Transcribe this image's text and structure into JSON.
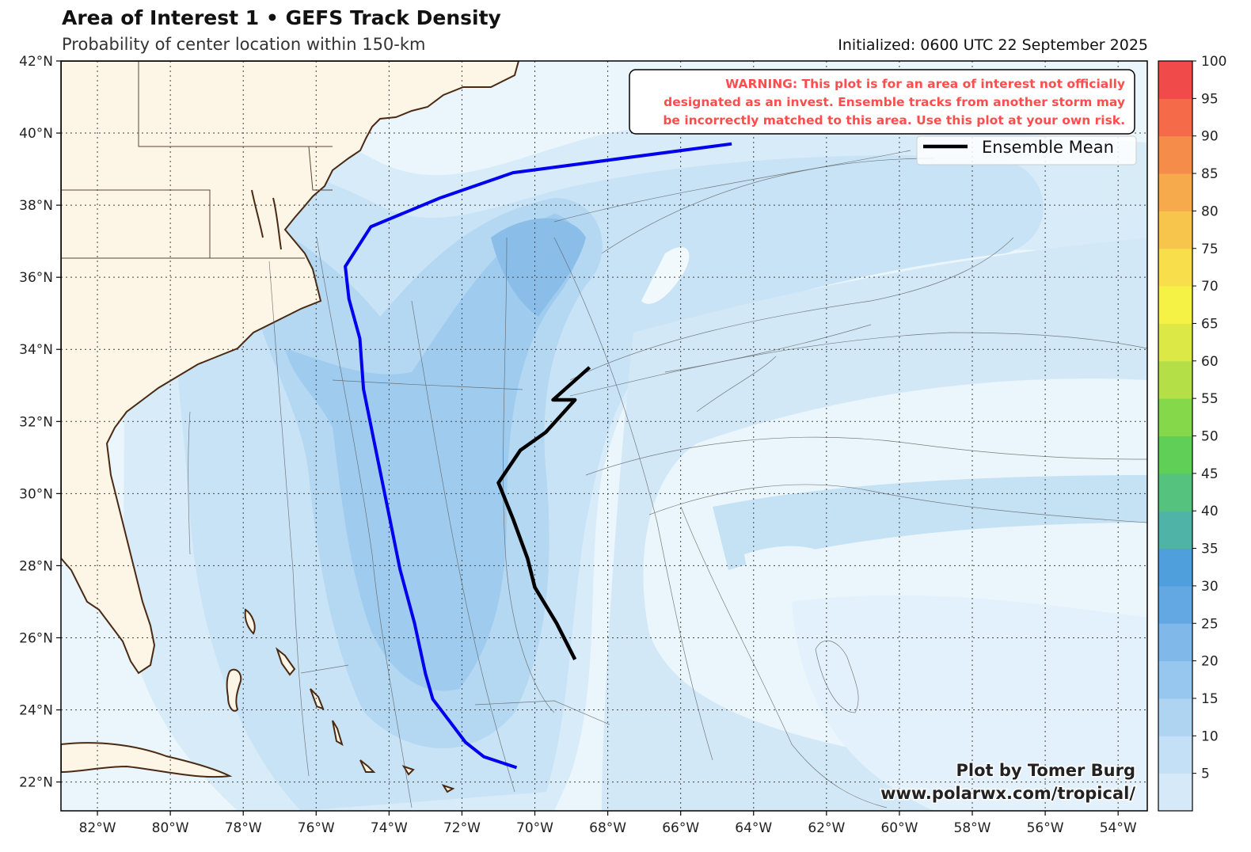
{
  "header": {
    "title": "Area of Interest 1 • GEFS Track Density",
    "subtitle": "Probability of center location within 150-km",
    "initialized": "Initialized: 0600 UTC 22 September 2025"
  },
  "map": {
    "lon_range": [
      -83,
      -53.2
    ],
    "lat_range": [
      21.2,
      42
    ],
    "lon_ticks": [
      "82°W",
      "80°W",
      "78°W",
      "76°W",
      "74°W",
      "72°W",
      "70°W",
      "68°W",
      "66°W",
      "64°W",
      "62°W",
      "60°W",
      "58°W",
      "56°W",
      "54°W"
    ],
    "lat_ticks": [
      "22°N",
      "24°N",
      "26°N",
      "28°N",
      "30°N",
      "32°N",
      "34°N",
      "36°N",
      "38°N",
      "40°N",
      "42°N"
    ],
    "ocean_color": "#eaf6fc",
    "land_color": "#fdf5e6"
  },
  "warning": {
    "lines": [
      "WARNING: This plot is for an area of interest not officially",
      "designated as an invest. Ensemble tracks from another storm may",
      "be incorrectly matched to this area. Use this plot at your own risk."
    ],
    "color": "#ff4d4d"
  },
  "legend": {
    "label": "Ensemble Mean"
  },
  "credit": {
    "line1": "Plot by Tomer Burg",
    "line2": "www.polarwx.com/tropical/"
  },
  "colorbar": {
    "labels": [
      "5",
      "10",
      "15",
      "20",
      "25",
      "30",
      "35",
      "40",
      "45",
      "50",
      "55",
      "60",
      "65",
      "70",
      "75",
      "80",
      "85",
      "90",
      "95",
      "100"
    ],
    "colors": [
      "#d5e9f8",
      "#c3e0f6",
      "#aed4f2",
      "#97c7ee",
      "#7fb8e9",
      "#63a8e3",
      "#4f9fdc",
      "#4fb3a8",
      "#55c27e",
      "#5fcf57",
      "#84d84a",
      "#b5df47",
      "#dce846",
      "#f5f145",
      "#f7de4a",
      "#f7c54c",
      "#f7aa4c",
      "#f68c4a",
      "#f56a48",
      "#f04a4a"
    ]
  },
  "chart_data": {
    "type": "map",
    "ensemble_mean_track": {
      "name": "Ensemble Mean",
      "color": "#000000",
      "points": [
        [
          -68.9,
          25.4
        ],
        [
          -69.4,
          26.4
        ],
        [
          -70.0,
          27.4
        ],
        [
          -70.2,
          28.2
        ],
        [
          -70.6,
          29.3
        ],
        [
          -71.0,
          30.3
        ],
        [
          -70.4,
          31.2
        ],
        [
          -69.7,
          31.7
        ],
        [
          -68.9,
          32.6
        ],
        [
          -69.5,
          32.6
        ],
        [
          -68.5,
          33.5
        ]
      ]
    },
    "highlighted_member_track": {
      "color": "#0000ee",
      "points": [
        [
          -70.5,
          22.4
        ],
        [
          -71.4,
          22.7
        ],
        [
          -71.9,
          23.1
        ],
        [
          -72.8,
          24.3
        ],
        [
          -73.0,
          25.0
        ],
        [
          -73.3,
          26.4
        ],
        [
          -73.7,
          27.9
        ],
        [
          -74.0,
          29.4
        ],
        [
          -74.4,
          31.4
        ],
        [
          -74.7,
          32.9
        ],
        [
          -74.8,
          34.3
        ],
        [
          -75.1,
          35.4
        ],
        [
          -75.2,
          36.3
        ],
        [
          -74.5,
          37.4
        ],
        [
          -72.6,
          38.2
        ],
        [
          -70.6,
          38.9
        ],
        [
          -64.6,
          39.7
        ]
      ]
    }
  }
}
